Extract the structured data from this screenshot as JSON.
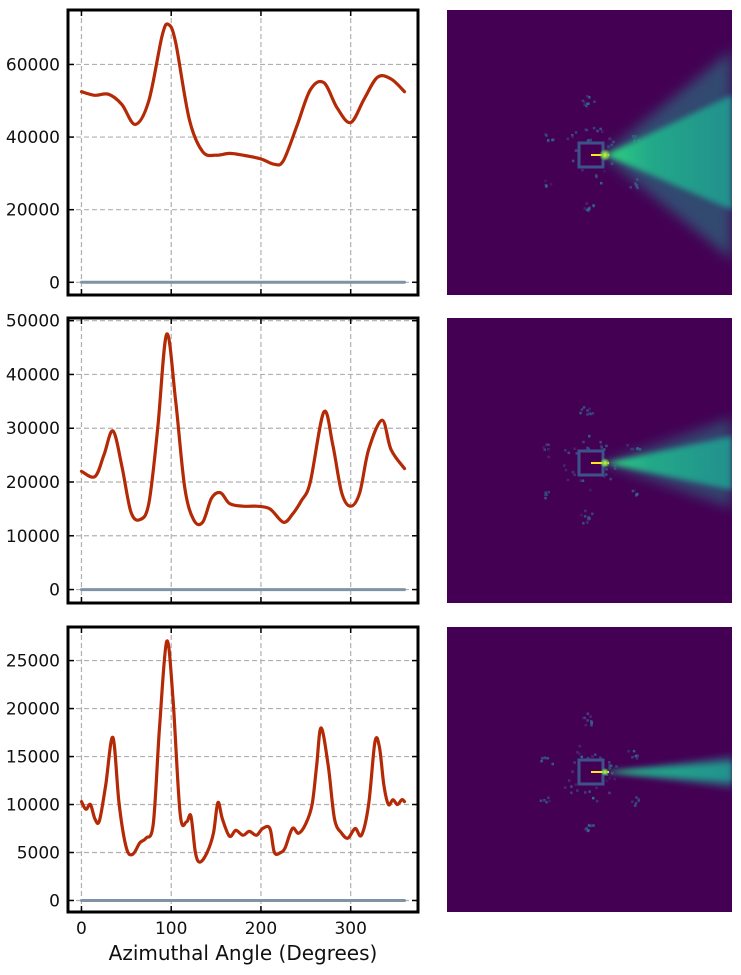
{
  "chart_data": [
    {
      "type": "line",
      "xlabel": "",
      "ylabel": "",
      "xlim": [
        -15,
        375
      ],
      "ylim": [
        -3500,
        75000
      ],
      "xticks": [
        0,
        100,
        200,
        300
      ],
      "yticks": [
        0,
        20000,
        40000,
        60000
      ],
      "grid": true,
      "series": [
        {
          "color": "#b42a06",
          "x": [
            0,
            15,
            30,
            45,
            60,
            75,
            90,
            97,
            105,
            120,
            135,
            150,
            165,
            180,
            200,
            215,
            225,
            240,
            255,
            270,
            285,
            300,
            315,
            330,
            345,
            360
          ],
          "y": [
            52500,
            51500,
            51800,
            49000,
            43500,
            50000,
            68000,
            71000,
            66000,
            45000,
            36000,
            35000,
            35500,
            35000,
            34000,
            32500,
            33500,
            43000,
            53000,
            55000,
            48000,
            44000,
            50500,
            56500,
            56000,
            52500
          ]
        },
        {
          "color": "#7f92a6",
          "x": [
            0,
            360
          ],
          "y": [
            0,
            0
          ]
        }
      ]
    },
    {
      "type": "line",
      "xlabel": "",
      "ylabel": "",
      "xlim": [
        -15,
        375
      ],
      "ylim": [
        -2500,
        50500
      ],
      "xticks": [
        0,
        100,
        200,
        300
      ],
      "yticks": [
        0,
        10000,
        20000,
        30000,
        40000,
        50000
      ],
      "grid": true,
      "series": [
        {
          "color": "#b42a06",
          "x": [
            0,
            15,
            25,
            35,
            45,
            55,
            65,
            75,
            85,
            95,
            105,
            115,
            125,
            135,
            145,
            155,
            165,
            180,
            195,
            210,
            225,
            235,
            245,
            255,
            270,
            280,
            290,
            300,
            310,
            320,
            335,
            345,
            360
          ],
          "y": [
            22000,
            21000,
            25000,
            29500,
            23000,
            14500,
            13000,
            16000,
            30000,
            47500,
            35000,
            19000,
            13000,
            12500,
            17000,
            18000,
            16000,
            15500,
            15500,
            15000,
            12500,
            14000,
            16500,
            20000,
            33000,
            27000,
            18000,
            15500,
            18000,
            26000,
            31500,
            26000,
            22500
          ]
        },
        {
          "color": "#7f92a6",
          "x": [
            0,
            360
          ],
          "y": [
            0,
            0
          ]
        }
      ]
    },
    {
      "type": "line",
      "xlabel": "Azimuthal Angle (Degrees)",
      "ylabel": "",
      "xlim": [
        -15,
        375
      ],
      "ylim": [
        -1200,
        28500
      ],
      "xticks": [
        0,
        100,
        200,
        300
      ],
      "yticks": [
        0,
        5000,
        10000,
        15000,
        20000,
        25000
      ],
      "grid": true,
      "series": [
        {
          "color": "#b42a06",
          "x": [
            0,
            5,
            10,
            15,
            20,
            27,
            35,
            42,
            50,
            57,
            65,
            72,
            80,
            87,
            95,
            102,
            110,
            117,
            122,
            127,
            132,
            140,
            147,
            152,
            157,
            165,
            172,
            180,
            187,
            195,
            202,
            210,
            215,
            222,
            227,
            235,
            242,
            250,
            257,
            262,
            267,
            275,
            282,
            290,
            297,
            305,
            312,
            320,
            327,
            332,
            337,
            342,
            347,
            352,
            357,
            360
          ],
          "y": [
            10300,
            9500,
            10000,
            8500,
            8300,
            12000,
            17000,
            10000,
            5500,
            4800,
            6000,
            6500,
            8000,
            18000,
            27000,
            21000,
            9000,
            8200,
            8800,
            5000,
            4000,
            5000,
            7000,
            10200,
            8500,
            6700,
            7300,
            6800,
            7200,
            6800,
            7500,
            7500,
            5000,
            5000,
            5500,
            7500,
            7000,
            8000,
            10000,
            14000,
            18000,
            14000,
            8500,
            7000,
            6500,
            7500,
            6800,
            10000,
            16500,
            16000,
            12000,
            10000,
            10500,
            10000,
            10500,
            10300
          ]
        },
        {
          "color": "#7f92a6",
          "x": [
            0,
            360
          ],
          "y": [
            0,
            0
          ]
        }
      ]
    }
  ],
  "images": [
    {
      "colormap": "viridis",
      "beam_width": "wide"
    },
    {
      "colormap": "viridis",
      "beam_width": "medium"
    },
    {
      "colormap": "viridis",
      "beam_width": "narrow"
    }
  ]
}
